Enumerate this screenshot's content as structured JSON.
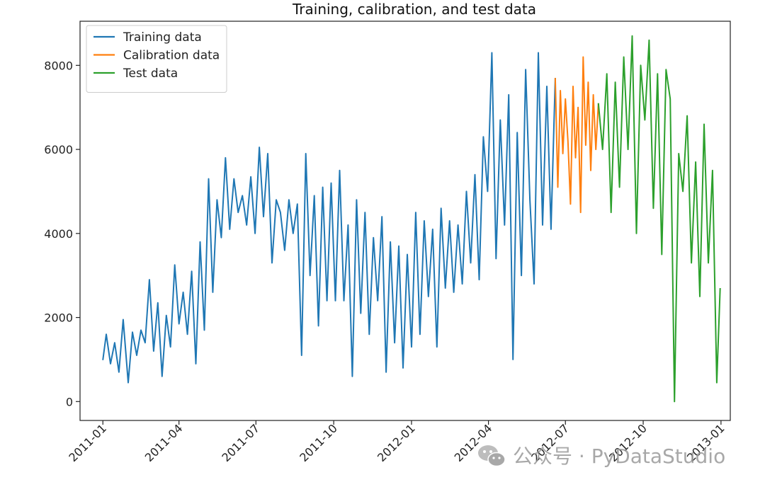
{
  "watermark": {
    "text": "公众号 · PyDataStudio",
    "icon": "wechat-icon"
  },
  "chart_data": {
    "type": "line",
    "title": "Training, calibration, and test data",
    "xlabel": "",
    "ylabel": "",
    "x_axis_type": "date",
    "xlim": [
      "2010-12-05",
      "2013-01-12"
    ],
    "ylim": [
      -450,
      9050
    ],
    "grid": false,
    "legend": "top-left",
    "xticks": [
      {
        "date": "2011-01-01",
        "label": "2011-01"
      },
      {
        "date": "2011-04-01",
        "label": "2011-04"
      },
      {
        "date": "2011-07-01",
        "label": "2011-07"
      },
      {
        "date": "2011-10-01",
        "label": "2011-10"
      },
      {
        "date": "2012-01-01",
        "label": "2012-01"
      },
      {
        "date": "2012-04-01",
        "label": "2012-04"
      },
      {
        "date": "2012-07-01",
        "label": "2012-07"
      },
      {
        "date": "2012-10-01",
        "label": "2012-10"
      },
      {
        "date": "2013-01-01",
        "label": "2013-01"
      }
    ],
    "yticks": [
      {
        "value": 0,
        "label": "0"
      },
      {
        "value": 2000,
        "label": "2000"
      },
      {
        "value": 4000,
        "label": "4000"
      },
      {
        "value": 6000,
        "label": "6000"
      },
      {
        "value": 8000,
        "label": "8000"
      }
    ],
    "series": [
      {
        "name": "Training data",
        "color": "#1f77b4",
        "x": [
          "2011-01-01",
          "2011-01-05",
          "2011-01-10",
          "2011-01-15",
          "2011-01-20",
          "2011-01-25",
          "2011-01-31",
          "2011-02-05",
          "2011-02-10",
          "2011-02-15",
          "2011-02-20",
          "2011-02-25",
          "2011-03-02",
          "2011-03-07",
          "2011-03-12",
          "2011-03-17",
          "2011-03-22",
          "2011-03-27",
          "2011-04-01",
          "2011-04-06",
          "2011-04-11",
          "2011-04-16",
          "2011-04-21",
          "2011-04-26",
          "2011-05-01",
          "2011-05-06",
          "2011-05-11",
          "2011-05-16",
          "2011-05-21",
          "2011-05-26",
          "2011-05-31",
          "2011-06-05",
          "2011-06-10",
          "2011-06-15",
          "2011-06-20",
          "2011-06-25",
          "2011-06-30",
          "2011-07-05",
          "2011-07-10",
          "2011-07-15",
          "2011-07-20",
          "2011-07-25",
          "2011-07-30",
          "2011-08-04",
          "2011-08-09",
          "2011-08-14",
          "2011-08-19",
          "2011-08-24",
          "2011-08-29",
          "2011-09-03",
          "2011-09-08",
          "2011-09-13",
          "2011-09-18",
          "2011-09-23",
          "2011-09-28",
          "2011-10-03",
          "2011-10-08",
          "2011-10-13",
          "2011-10-18",
          "2011-10-23",
          "2011-10-28",
          "2011-11-02",
          "2011-11-07",
          "2011-11-12",
          "2011-11-17",
          "2011-11-22",
          "2011-11-27",
          "2011-12-02",
          "2011-12-07",
          "2011-12-12",
          "2011-12-17",
          "2011-12-22",
          "2011-12-27",
          "2012-01-01",
          "2012-01-06",
          "2012-01-11",
          "2012-01-16",
          "2012-01-21",
          "2012-01-26",
          "2012-01-31",
          "2012-02-05",
          "2012-02-10",
          "2012-02-15",
          "2012-02-20",
          "2012-02-25",
          "2012-03-01",
          "2012-03-06",
          "2012-03-11",
          "2012-03-16",
          "2012-03-21",
          "2012-03-26",
          "2012-03-31",
          "2012-04-05",
          "2012-04-10",
          "2012-04-15",
          "2012-04-20",
          "2012-04-25",
          "2012-04-30",
          "2012-05-05",
          "2012-05-10",
          "2012-05-15",
          "2012-05-20",
          "2012-05-25",
          "2012-05-30",
          "2012-06-04",
          "2012-06-09",
          "2012-06-14",
          "2012-06-19"
        ],
        "y": [
          985,
          1600,
          900,
          1400,
          700,
          1950,
          450,
          1650,
          1100,
          1700,
          1400,
          2900,
          1200,
          2350,
          600,
          2050,
          1300,
          3250,
          1850,
          2600,
          1600,
          3100,
          900,
          3800,
          1700,
          5300,
          2600,
          4800,
          3900,
          5800,
          4100,
          5300,
          4500,
          4900,
          4200,
          5350,
          4000,
          6050,
          4400,
          5900,
          3300,
          4800,
          4500,
          3600,
          4800,
          4000,
          4700,
          1100,
          5900,
          3000,
          4900,
          1800,
          5100,
          2400,
          5200,
          2400,
          5500,
          2400,
          4200,
          600,
          4800,
          2100,
          4500,
          1600,
          3900,
          2400,
          4400,
          700,
          3800,
          1400,
          3700,
          800,
          3500,
          1300,
          4500,
          1600,
          4300,
          2500,
          4100,
          1300,
          4600,
          2700,
          4300,
          2600,
          4200,
          2800,
          5000,
          3300,
          5400,
          2900,
          6300,
          5000,
          8300,
          3400,
          6700,
          4200,
          7300,
          1000,
          6400,
          3000,
          7900,
          4800,
          2800,
          8300,
          4200,
          7500,
          4100,
          7700
        ]
      },
      {
        "name": "Calibration data",
        "color": "#ff7f0e",
        "x": [
          "2012-06-19",
          "2012-06-22",
          "2012-06-25",
          "2012-06-28",
          "2012-07-01",
          "2012-07-04",
          "2012-07-07",
          "2012-07-10",
          "2012-07-13",
          "2012-07-16",
          "2012-07-19",
          "2012-07-22",
          "2012-07-25",
          "2012-07-28",
          "2012-07-31",
          "2012-08-03",
          "2012-08-06",
          "2012-08-09"
        ],
        "y": [
          7700,
          5100,
          7400,
          5900,
          7200,
          6200,
          4700,
          7500,
          5800,
          7000,
          4500,
          8200,
          6100,
          7600,
          5500,
          7300,
          6000,
          7100
        ]
      },
      {
        "name": "Test data",
        "color": "#2ca02c",
        "x": [
          "2012-08-09",
          "2012-08-14",
          "2012-08-19",
          "2012-08-24",
          "2012-08-29",
          "2012-09-03",
          "2012-09-08",
          "2012-09-13",
          "2012-09-18",
          "2012-09-23",
          "2012-09-28",
          "2012-10-03",
          "2012-10-08",
          "2012-10-13",
          "2012-10-18",
          "2012-10-23",
          "2012-10-28",
          "2012-11-02",
          "2012-11-07",
          "2012-11-12",
          "2012-11-17",
          "2012-11-22",
          "2012-11-27",
          "2012-12-02",
          "2012-12-07",
          "2012-12-12",
          "2012-12-17",
          "2012-12-22",
          "2012-12-27",
          "2012-12-31"
        ],
        "y": [
          7100,
          6000,
          7800,
          4500,
          7600,
          5100,
          8200,
          6000,
          8700,
          4000,
          8000,
          6700,
          8600,
          4600,
          7800,
          3500,
          7900,
          7200,
          0,
          5900,
          5000,
          6800,
          3300,
          5700,
          2500,
          6600,
          3300,
          5500,
          450,
          2700
        ]
      }
    ]
  }
}
